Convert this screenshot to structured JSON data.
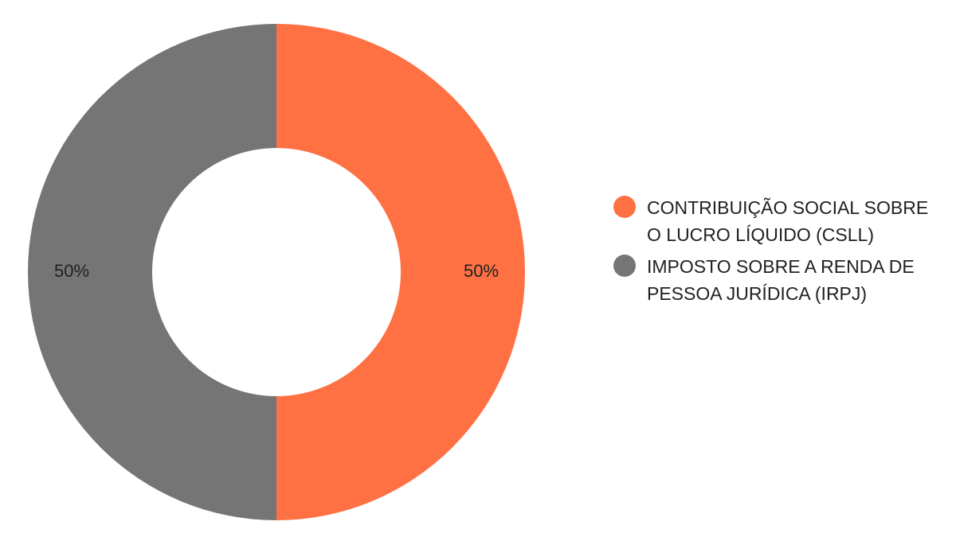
{
  "chart_data": {
    "type": "pie",
    "donut": true,
    "categories": [
      "CONTRIBUIÇÃO SOCIAL SOBRE O LUCRO LÍQUIDO (CSLL)",
      "IMPOSTO SOBRE A RENDA DE PESSOA JURÍDICA (IRPJ)"
    ],
    "values": [
      50,
      50
    ],
    "value_labels": [
      "50%",
      "50%"
    ],
    "colors": [
      "#FF7043",
      "#757575"
    ],
    "legend_position": "right",
    "title": ""
  }
}
